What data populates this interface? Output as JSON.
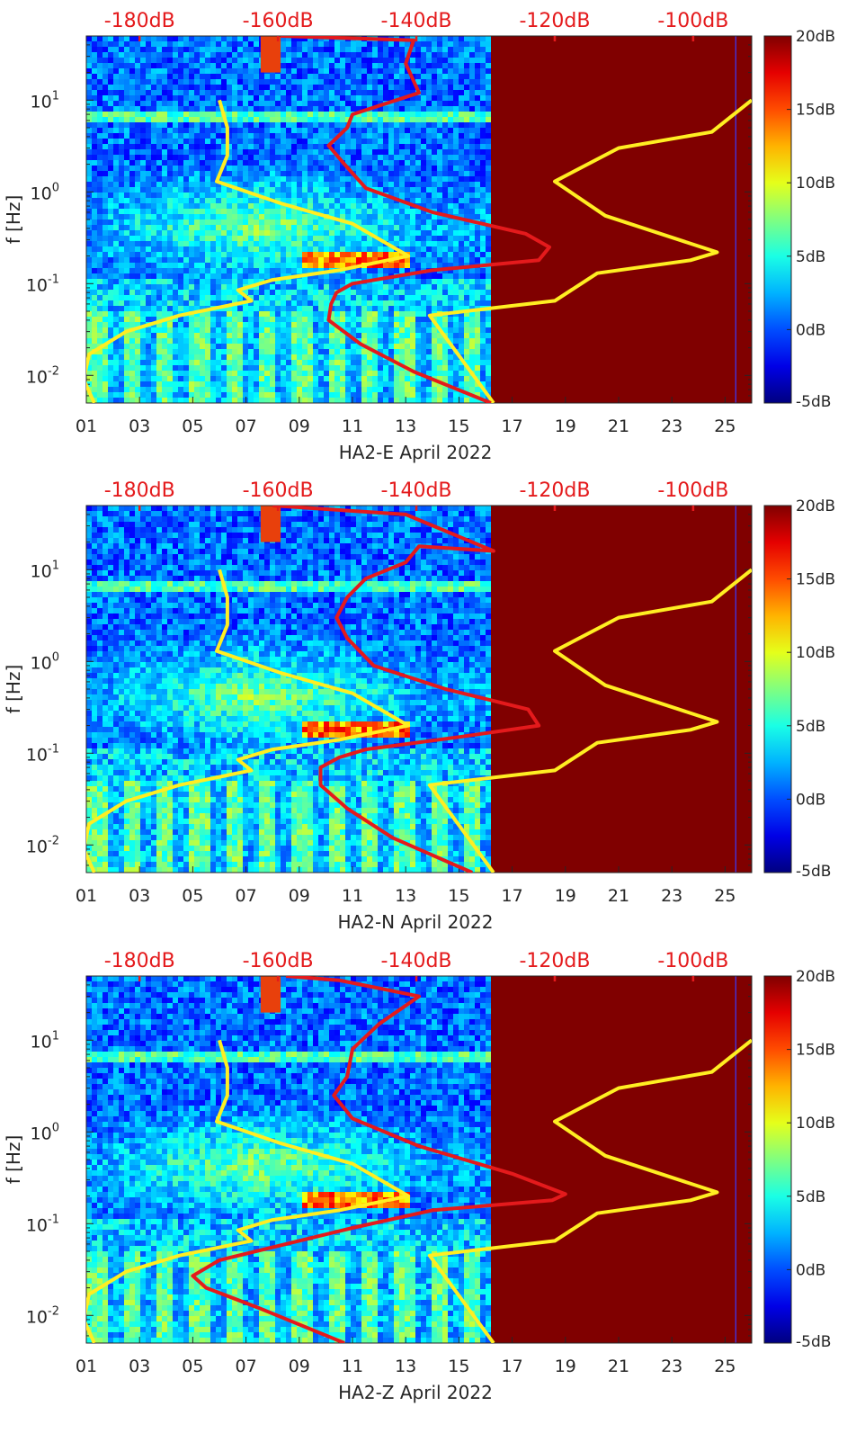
{
  "chart_data": [
    {
      "type": "heatmap",
      "title": "",
      "xlabel": "HA2-E April 2022",
      "ylabel": "f [Hz]",
      "x_tick_labels": [
        "01",
        "03",
        "05",
        "07",
        "09",
        "11",
        "13",
        "15",
        "17",
        "19",
        "21",
        "23",
        "25"
      ],
      "x_ticks": [
        1,
        3,
        5,
        7,
        9,
        11,
        13,
        15,
        17,
        19,
        21,
        23,
        25
      ],
      "xlim": [
        1,
        26
      ],
      "ylim_hz": [
        0.005,
        50
      ],
      "y_ticks_hz": [
        0.01,
        0.1,
        1,
        10
      ],
      "y_tick_labels": [
        [
          "10",
          "-2"
        ],
        [
          "10",
          "-1"
        ],
        [
          "10",
          "0"
        ],
        [
          "10",
          "1"
        ]
      ],
      "spectrogram_data_end_day": 16.2,
      "top_axis": {
        "labels": [
          "-180dB",
          "-160dB",
          "-140dB",
          "-120dB",
          "-100dB"
        ],
        "days": [
          3,
          8.2,
          13.4,
          18.6,
          23.8
        ],
        "color": "#e41a1c"
      },
      "colorbar": {
        "labels": [
          "20dB",
          "15dB",
          "10dB",
          "5dB",
          "0dB",
          "-5dB"
        ],
        "range": [
          -5,
          20
        ]
      },
      "series": [
        {
          "name": "noise-model",
          "color": "#ffee22",
          "points": [
            [
              1.3,
              0.005
            ],
            [
              0.9,
              0.009
            ],
            [
              1.1,
              0.017
            ],
            [
              2.5,
              0.03
            ],
            [
              4.5,
              0.045
            ],
            [
              7.2,
              0.065
            ],
            [
              6.7,
              0.085
            ],
            [
              8.0,
              0.11
            ],
            [
              10.5,
              0.14
            ],
            [
              13.1,
              0.2
            ],
            [
              11.0,
              0.45
            ],
            [
              8.3,
              0.75
            ],
            [
              5.9,
              1.3
            ],
            [
              6.3,
              2.5
            ],
            [
              6.3,
              5
            ],
            [
              6.0,
              10
            ]
          ]
        },
        {
          "name": "noise-model-db",
          "color": "#ffee22",
          "points": [
            [
              16.3,
              0.005
            ],
            [
              13.9,
              0.045
            ],
            [
              18.6,
              0.065
            ],
            [
              20.2,
              0.13
            ],
            [
              23.7,
              0.18
            ],
            [
              24.7,
              0.22
            ],
            [
              20.5,
              0.55
            ],
            [
              18.6,
              1.3
            ],
            [
              21.0,
              3.0
            ],
            [
              24.5,
              4.5
            ],
            [
              26,
              10
            ]
          ]
        },
        {
          "name": "psd-estimate",
          "color": "#e41a1c",
          "points": [
            [
              16.2,
              0.005
            ],
            [
              13.3,
              0.011
            ],
            [
              11.3,
              0.022
            ],
            [
              10.1,
              0.04
            ],
            [
              10.2,
              0.06
            ],
            [
              10.4,
              0.08
            ],
            [
              11.0,
              0.1
            ],
            [
              14.0,
              0.14
            ],
            [
              18.0,
              0.18
            ],
            [
              18.4,
              0.25
            ],
            [
              17.5,
              0.35
            ],
            [
              14.0,
              0.6
            ],
            [
              11.5,
              1.1
            ],
            [
              10.7,
              2
            ],
            [
              10.1,
              3.2
            ],
            [
              10.8,
              5
            ],
            [
              11.0,
              7
            ],
            [
              13.5,
              12
            ],
            [
              13.0,
              25
            ],
            [
              13.3,
              45
            ],
            [
              8.3,
              50
            ]
          ]
        }
      ]
    },
    {
      "type": "heatmap",
      "title": "",
      "xlabel": "HA2-N April 2022",
      "ylabel": "f [Hz]",
      "x_tick_labels": [
        "01",
        "03",
        "05",
        "07",
        "09",
        "11",
        "13",
        "15",
        "17",
        "19",
        "21",
        "23",
        "25"
      ],
      "x_ticks": [
        1,
        3,
        5,
        7,
        9,
        11,
        13,
        15,
        17,
        19,
        21,
        23,
        25
      ],
      "xlim": [
        1,
        26
      ],
      "ylim_hz": [
        0.005,
        50
      ],
      "y_ticks_hz": [
        0.01,
        0.1,
        1,
        10
      ],
      "y_tick_labels": [
        [
          "10",
          "-2"
        ],
        [
          "10",
          "-1"
        ],
        [
          "10",
          "0"
        ],
        [
          "10",
          "1"
        ]
      ],
      "spectrogram_data_end_day": 16.2,
      "top_axis": {
        "labels": [
          "-180dB",
          "-160dB",
          "-140dB",
          "-120dB",
          "-100dB"
        ],
        "days": [
          3,
          8.2,
          13.4,
          18.6,
          23.8
        ],
        "color": "#e41a1c"
      },
      "colorbar": {
        "labels": [
          "20dB",
          "15dB",
          "10dB",
          "5dB",
          "0dB",
          "-5dB"
        ],
        "range": [
          -5,
          20
        ]
      },
      "series": [
        {
          "name": "noise-model",
          "color": "#ffee22",
          "points": [
            [
              1.3,
              0.005
            ],
            [
              0.9,
              0.009
            ],
            [
              1.1,
              0.017
            ],
            [
              2.5,
              0.03
            ],
            [
              4.5,
              0.045
            ],
            [
              7.2,
              0.065
            ],
            [
              6.7,
              0.085
            ],
            [
              8.0,
              0.11
            ],
            [
              10.5,
              0.14
            ],
            [
              13.1,
              0.2
            ],
            [
              11.0,
              0.45
            ],
            [
              8.3,
              0.75
            ],
            [
              5.9,
              1.3
            ],
            [
              6.3,
              2.5
            ],
            [
              6.3,
              5
            ],
            [
              6.0,
              10
            ]
          ]
        },
        {
          "name": "noise-model-db",
          "color": "#ffee22",
          "points": [
            [
              16.3,
              0.005
            ],
            [
              13.9,
              0.045
            ],
            [
              18.6,
              0.065
            ],
            [
              20.2,
              0.13
            ],
            [
              23.7,
              0.18
            ],
            [
              24.7,
              0.22
            ],
            [
              20.5,
              0.55
            ],
            [
              18.6,
              1.3
            ],
            [
              21.0,
              3.0
            ],
            [
              24.5,
              4.5
            ],
            [
              26,
              10
            ]
          ]
        },
        {
          "name": "psd-estimate",
          "color": "#e41a1c",
          "points": [
            [
              15.5,
              0.005
            ],
            [
              12.5,
              0.012
            ],
            [
              10.8,
              0.025
            ],
            [
              9.8,
              0.045
            ],
            [
              9.8,
              0.07
            ],
            [
              10.5,
              0.09
            ],
            [
              11.5,
              0.11
            ],
            [
              15.0,
              0.15
            ],
            [
              18.0,
              0.2
            ],
            [
              17.6,
              0.3
            ],
            [
              14.5,
              0.5
            ],
            [
              11.8,
              0.9
            ],
            [
              10.8,
              1.8
            ],
            [
              10.4,
              3
            ],
            [
              10.8,
              5
            ],
            [
              11.5,
              8
            ],
            [
              13.0,
              12
            ],
            [
              13.5,
              18
            ],
            [
              16.3,
              16
            ],
            [
              13.0,
              40
            ],
            [
              8.0,
              50
            ]
          ]
        }
      ]
    },
    {
      "type": "heatmap",
      "title": "",
      "xlabel": "HA2-Z April 2022",
      "ylabel": "f [Hz]",
      "x_tick_labels": [
        "01",
        "03",
        "05",
        "07",
        "09",
        "11",
        "13",
        "15",
        "17",
        "19",
        "21",
        "23",
        "25"
      ],
      "x_ticks": [
        1,
        3,
        5,
        7,
        9,
        11,
        13,
        15,
        17,
        19,
        21,
        23,
        25
      ],
      "xlim": [
        1,
        26
      ],
      "ylim_hz": [
        0.005,
        50
      ],
      "y_ticks_hz": [
        0.01,
        0.1,
        1,
        10
      ],
      "y_tick_labels": [
        [
          "10",
          "-2"
        ],
        [
          "10",
          "-1"
        ],
        [
          "10",
          "0"
        ],
        [
          "10",
          "1"
        ]
      ],
      "spectrogram_data_end_day": 16.2,
      "top_axis": {
        "labels": [
          "-180dB",
          "-160dB",
          "-140dB",
          "-120dB",
          "-100dB"
        ],
        "days": [
          3,
          8.2,
          13.4,
          18.6,
          23.8
        ],
        "color": "#e41a1c"
      },
      "colorbar": {
        "labels": [
          "20dB",
          "15dB",
          "10dB",
          "5dB",
          "0dB",
          "-5dB"
        ],
        "range": [
          -5,
          20
        ]
      },
      "series": [
        {
          "name": "noise-model",
          "color": "#ffee22",
          "points": [
            [
              1.3,
              0.005
            ],
            [
              0.9,
              0.009
            ],
            [
              1.1,
              0.017
            ],
            [
              2.5,
              0.03
            ],
            [
              4.5,
              0.045
            ],
            [
              7.2,
              0.065
            ],
            [
              6.7,
              0.085
            ],
            [
              8.0,
              0.11
            ],
            [
              10.5,
              0.14
            ],
            [
              13.1,
              0.2
            ],
            [
              11.0,
              0.45
            ],
            [
              8.3,
              0.75
            ],
            [
              5.9,
              1.3
            ],
            [
              6.3,
              2.5
            ],
            [
              6.3,
              5
            ],
            [
              6.0,
              10
            ]
          ]
        },
        {
          "name": "noise-model-db",
          "color": "#ffee22",
          "points": [
            [
              16.3,
              0.005
            ],
            [
              13.9,
              0.045
            ],
            [
              18.6,
              0.065
            ],
            [
              20.2,
              0.13
            ],
            [
              23.7,
              0.18
            ],
            [
              24.7,
              0.22
            ],
            [
              20.5,
              0.55
            ],
            [
              18.6,
              1.3
            ],
            [
              21.0,
              3.0
            ],
            [
              24.5,
              4.5
            ],
            [
              26,
              10
            ]
          ]
        },
        {
          "name": "psd-estimate",
          "color": "#e41a1c",
          "points": [
            [
              10.7,
              0.005
            ],
            [
              7.5,
              0.012
            ],
            [
              5.5,
              0.02
            ],
            [
              5.0,
              0.027
            ],
            [
              6.0,
              0.04
            ],
            [
              8.5,
              0.06
            ],
            [
              11.0,
              0.09
            ],
            [
              14.0,
              0.14
            ],
            [
              18.5,
              0.18
            ],
            [
              19.0,
              0.21
            ],
            [
              17.0,
              0.35
            ],
            [
              13.5,
              0.7
            ],
            [
              11.0,
              1.4
            ],
            [
              10.3,
              2.5
            ],
            [
              10.8,
              4
            ],
            [
              11.0,
              8
            ],
            [
              12.0,
              15
            ],
            [
              13.5,
              30
            ],
            [
              10.5,
              45
            ],
            [
              8.5,
              50
            ]
          ]
        }
      ]
    }
  ]
}
